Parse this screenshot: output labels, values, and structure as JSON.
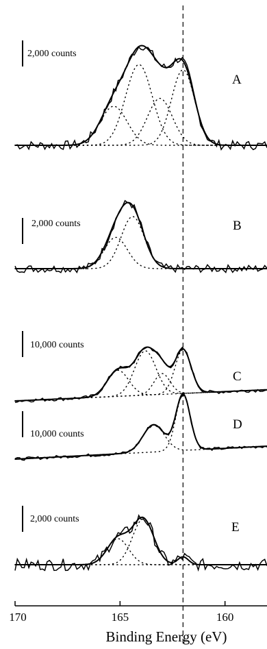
{
  "chart_data": {
    "type": "line",
    "title": "",
    "xlabel": "Binding Energy (eV)",
    "ylabel": "",
    "xlim": [
      170,
      158
    ],
    "x_ticks": [
      170,
      165,
      160
    ],
    "x_tick_labels": [
      "170",
      "165",
      "160"
    ],
    "reference_line_x": 162.0,
    "grid": false,
    "legend": "none",
    "panels": [
      {
        "label": "A",
        "scale_bar": "2,000 counts",
        "scale_bar_counts": 2000,
        "baseline_counts": [
          0,
          0
        ],
        "peaks": [
          {
            "center": 165.3,
            "height": 3000,
            "fwhm": 1.5
          },
          {
            "center": 164.1,
            "height": 6200,
            "fwhm": 1.5
          },
          {
            "center": 163.1,
            "height": 3600,
            "fwhm": 1.4
          },
          {
            "center": 162.0,
            "height": 5800,
            "fwhm": 1.3
          }
        ],
        "noise_counts": 350
      },
      {
        "label": "B",
        "scale_bar": "2,000 counts",
        "scale_bar_counts": 2000,
        "baseline_counts": [
          0,
          0
        ],
        "peaks": [
          {
            "center": 165.2,
            "height": 2400,
            "fwhm": 1.3
          },
          {
            "center": 164.4,
            "height": 4000,
            "fwhm": 1.3
          }
        ],
        "noise_counts": 300
      },
      {
        "label": "C",
        "scale_bar": "10,000 counts",
        "scale_bar_counts": 10000,
        "baseline_counts": [
          0,
          4300
        ],
        "peaks": [
          {
            "center": 165.1,
            "height": 10000,
            "fwhm": 1.2
          },
          {
            "center": 163.8,
            "height": 17000,
            "fwhm": 1.2
          },
          {
            "center": 163.0,
            "height": 8000,
            "fwhm": 0.9
          },
          {
            "center": 162.0,
            "height": 16800,
            "fwhm": 0.9
          }
        ],
        "noise_counts": 700
      },
      {
        "label": "D",
        "scale_bar": "10,000 counts",
        "scale_bar_counts": 10000,
        "baseline_counts": [
          0,
          5000
        ],
        "peaks": [
          {
            "center": 163.4,
            "height": 10500,
            "fwhm": 1.2
          },
          {
            "center": 162.0,
            "height": 21500,
            "fwhm": 0.8
          }
        ],
        "noise_counts": 600
      },
      {
        "label": "E",
        "scale_bar": "2,000 counts",
        "scale_bar_counts": 2000,
        "baseline_counts": [
          0,
          0
        ],
        "peaks": [
          {
            "center": 165.1,
            "height": 2000,
            "fwhm": 1.2
          },
          {
            "center": 163.9,
            "height": 3500,
            "fwhm": 1.2
          },
          {
            "center": 162.0,
            "height": 600,
            "fwhm": 0.6
          }
        ],
        "noise_counts": 450
      }
    ]
  }
}
